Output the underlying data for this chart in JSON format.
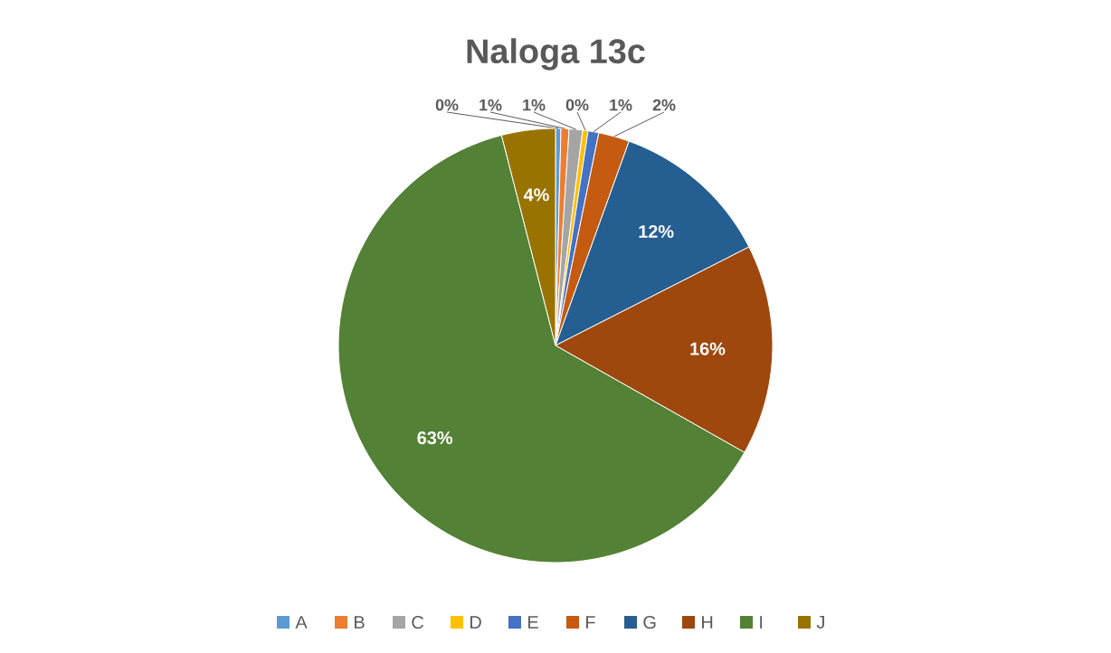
{
  "chart_data": {
    "type": "pie",
    "title": "Naloga 13c",
    "categories": [
      "A",
      "B",
      "C",
      "D",
      "E",
      "F",
      "G",
      "H",
      "I",
      "J"
    ],
    "values": [
      0.4,
      0.6,
      1.0,
      0.4,
      0.8,
      2.3,
      12,
      15.7,
      62.8,
      4
    ],
    "value_labels": [
      "0%",
      "1%",
      "1%",
      "0%",
      "1%",
      "2%",
      "12%",
      "16%",
      "63%",
      "4%"
    ],
    "colors": [
      "#5b9bd5",
      "#ed7d31",
      "#a5a5a5",
      "#ffc000",
      "#4472c4",
      "#c55a11",
      "#255e91",
      "#9e480e",
      "#538135",
      "#997300"
    ],
    "legend": "bottom"
  }
}
